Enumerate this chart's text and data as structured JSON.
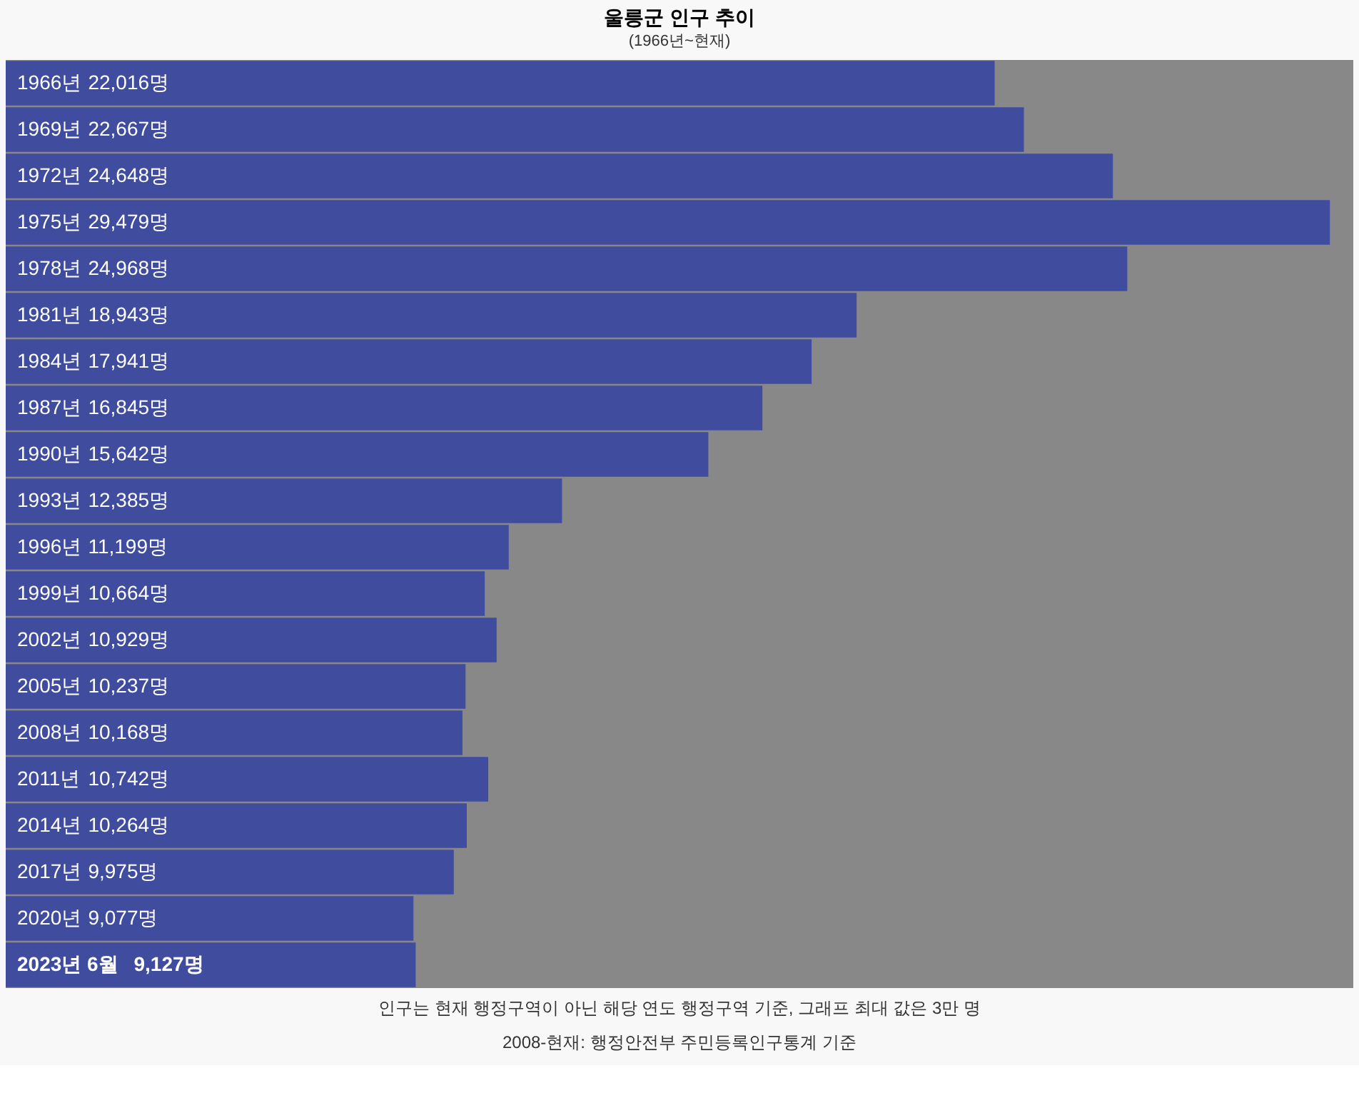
{
  "chart_data": {
    "type": "bar",
    "orientation": "horizontal",
    "title": "울릉군 인구 추이",
    "subtitle": "(1966년~현재)",
    "categories": [
      "1966년",
      "1969년",
      "1972년",
      "1975년",
      "1978년",
      "1981년",
      "1984년",
      "1987년",
      "1990년",
      "1993년",
      "1996년",
      "1999년",
      "2002년",
      "2005년",
      "2008년",
      "2011년",
      "2014년",
      "2017년",
      "2020년",
      "2023년 6월"
    ],
    "values": [
      22016,
      22667,
      24648,
      29479,
      24968,
      18943,
      17941,
      16845,
      15642,
      12385,
      11199,
      10664,
      10929,
      10237,
      10168,
      10742,
      10264,
      9975,
      9077,
      9127
    ],
    "value_labels": [
      "22,016명",
      "22,667명",
      "24,648명",
      "29,479명",
      "24,968명",
      "18,943명",
      "17,941명",
      "16,845명",
      "15,642명",
      "12,385명",
      "11,199명",
      "10,664명",
      "10,929명",
      "10,237명",
      "10,168명",
      "10,742명",
      "10,264명",
      "9,975명",
      "9,077명",
      "9,127명"
    ],
    "color": "#404c9e",
    "xlim": [
      0,
      30000
    ],
    "tick_labels": false,
    "annotations": [
      "인구는 현재 행정구역이 아닌 해당 연도 행정구역 기준, 그래프 최대 값은 3만 명",
      "2008-현재: 행정안전부 주민등록인구통계 기준"
    ]
  }
}
